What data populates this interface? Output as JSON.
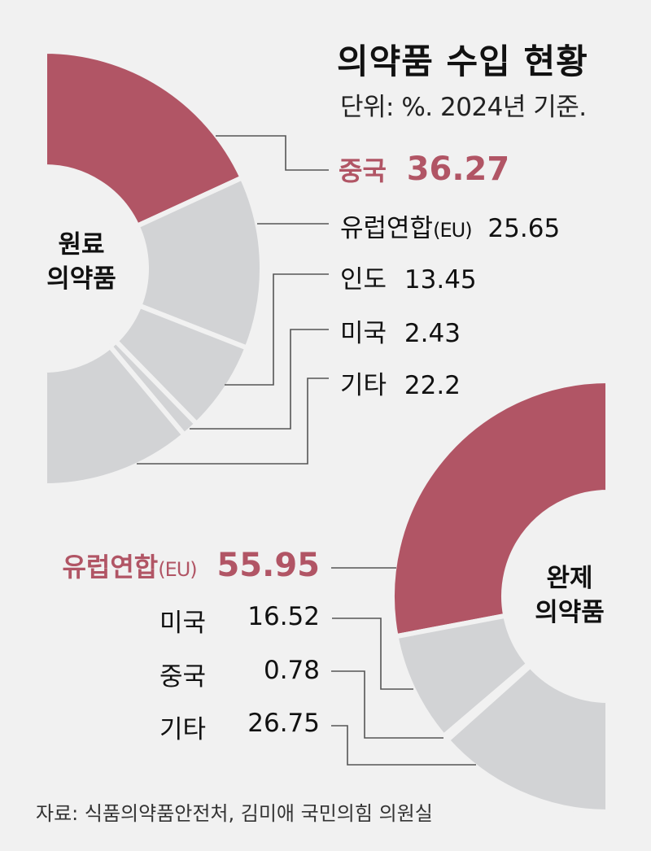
{
  "header": {
    "title": "의약품 수입 현황",
    "subtitle": "단위: %. 2024년 기준."
  },
  "colors": {
    "highlight": "#b15565",
    "others": "#d2d3d5",
    "background": "#f1f1f1",
    "leader_line": "#555555"
  },
  "raw_chart": {
    "center_label_line1": "원료",
    "center_label_line2": "의약품",
    "items": [
      {
        "name": "중국",
        "value": "36.27",
        "highlight": true
      },
      {
        "name": "유럽연합",
        "suffix": "(EU)",
        "value": "25.65",
        "highlight": false
      },
      {
        "name": "인도",
        "value": "13.45",
        "highlight": false
      },
      {
        "name": "미국",
        "value": "2.43",
        "highlight": false
      },
      {
        "name": "기타",
        "value": "22.2",
        "highlight": false
      }
    ]
  },
  "finished_chart": {
    "center_label_line1": "완제",
    "center_label_line2": "의약품",
    "items": [
      {
        "name": "유럽연합",
        "suffix": "(EU)",
        "value": "55.95",
        "highlight": true
      },
      {
        "name": "미국",
        "value": "16.52",
        "highlight": false
      },
      {
        "name": "중국",
        "value": "0.78",
        "highlight": false
      },
      {
        "name": "기타",
        "value": "26.75",
        "highlight": false
      }
    ]
  },
  "footer": {
    "source": "자료: 식품의약품안전처, 김미애 국민의힘 의원실"
  },
  "chart_data": [
    {
      "type": "pie",
      "variant": "half-donut",
      "title": "의약품 수입 현황 - 원료의약품",
      "subtitle": "단위: %. 2024년 기준.",
      "unit": "%",
      "categories": [
        "중국",
        "유럽연합(EU)",
        "인도",
        "미국",
        "기타"
      ],
      "values": [
        36.27,
        25.65,
        13.45,
        2.43,
        22.2
      ],
      "highlight": "중국",
      "legend_position": "right"
    },
    {
      "type": "pie",
      "variant": "half-donut",
      "title": "의약품 수입 현황 - 완제의약품",
      "subtitle": "단위: %. 2024년 기준.",
      "unit": "%",
      "categories": [
        "유럽연합(EU)",
        "미국",
        "중국",
        "기타"
      ],
      "values": [
        55.95,
        16.52,
        0.78,
        26.75
      ],
      "highlight": "유럽연합(EU)",
      "legend_position": "left"
    }
  ]
}
